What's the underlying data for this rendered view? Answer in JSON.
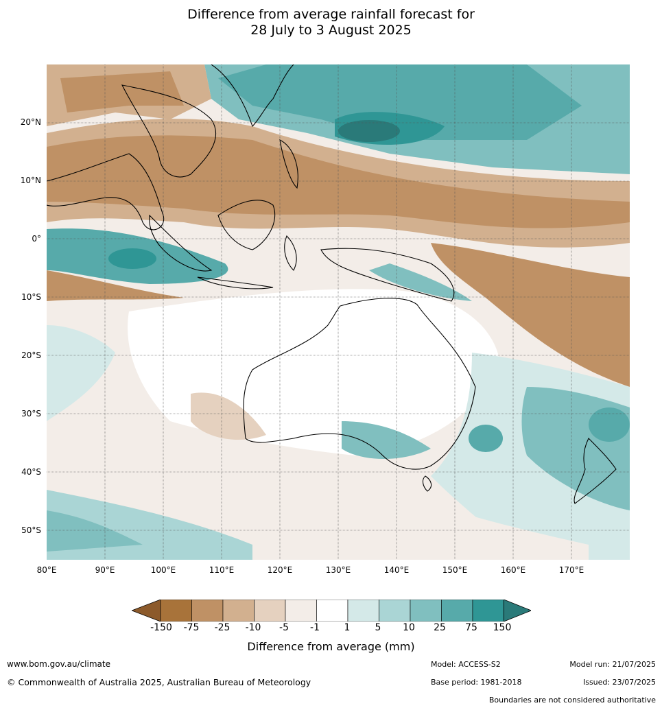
{
  "title_line1": "Difference from average rainfall forecast for",
  "title_line2": "28 July to 3 August 2025",
  "map": {
    "lat_labels": [
      "20°N",
      "10°N",
      "0°",
      "10°S",
      "20°S",
      "30°S",
      "40°S",
      "50°S"
    ],
    "lon_labels": [
      "80°E",
      "90°E",
      "100°E",
      "110°E",
      "120°E",
      "130°E",
      "140°E",
      "150°E",
      "160°E",
      "170°E"
    ],
    "lon_range": [
      80,
      180
    ],
    "lat_range": [
      -55,
      30
    ]
  },
  "colorbar": {
    "ticks": [
      "-150",
      "-75",
      "-25",
      "-10",
      "-5",
      "-1",
      "1",
      "5",
      "10",
      "25",
      "75",
      "150"
    ],
    "colors": [
      "#a8733a",
      "#bf9165",
      "#d2b08f",
      "#e5d1bf",
      "#f3ede8",
      "#ffffff",
      "#d4e9e8",
      "#aad5d5",
      "#80bfbf",
      "#57aaaa",
      "#2f9695",
      "#2a7a79"
    ],
    "low_extend_color": "#8c5a2b",
    "high_extend_color": "#2a7a79",
    "label": "Difference from average (mm)"
  },
  "footer": {
    "website": "www.bom.gov.au/climate",
    "copyright": "© Commonwealth of Australia 2025, Australian Bureau of Meteorology",
    "model": "Model: ACCESS-S2",
    "base_period": "Base period: 1981-2018",
    "model_run": "Model run: 21/07/2025",
    "issued": "Issued: 23/07/2025",
    "disclaimer": "Boundaries are not considered authoritative"
  }
}
